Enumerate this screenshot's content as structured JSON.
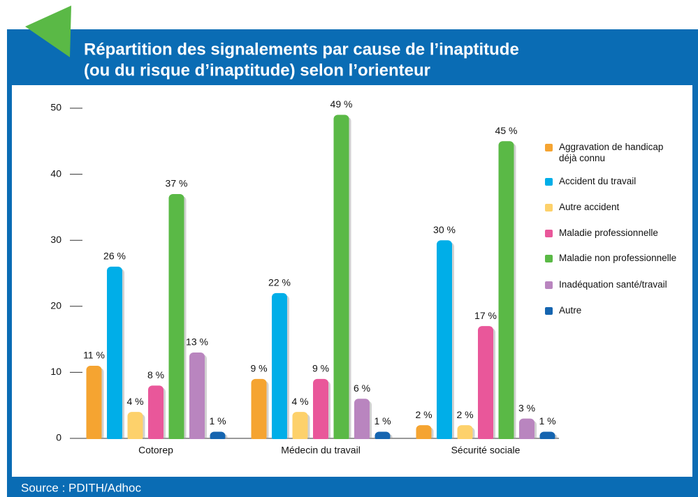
{
  "chart_data": {
    "type": "bar",
    "title_lines": [
      "Répartition des signalements par cause de l’inaptitude",
      "(ou du risque d’inaptitude) selon l’orienteur"
    ],
    "categories": [
      "Cotorep",
      "Médecin du travail",
      "Sécurité sociale"
    ],
    "series": [
      {
        "name": "Aggravation de handicap déjà connu",
        "color": "#f5a431",
        "values": [
          11,
          9,
          2
        ],
        "value_labels": [
          "11 %",
          "9 %",
          "2 %"
        ]
      },
      {
        "name": "Accident du travail",
        "color": "#00aee8",
        "values": [
          26,
          22,
          30
        ],
        "value_labels": [
          "26 %",
          "22 %",
          "30 %"
        ]
      },
      {
        "name": "Autre accident",
        "color": "#fdd16b",
        "values": [
          4,
          4,
          2
        ],
        "value_labels": [
          "4 %",
          "4 %",
          "2 %"
        ]
      },
      {
        "name": "Maladie professionnelle",
        "color": "#e9579a",
        "values": [
          8,
          9,
          17
        ],
        "value_labels": [
          "8 %",
          "9 %",
          "17 %"
        ]
      },
      {
        "name": "Maladie non professionnelle",
        "color": "#5ab946",
        "values": [
          37,
          49,
          45
        ],
        "value_labels": [
          "37 %",
          "49 %",
          "45 %"
        ]
      },
      {
        "name": "Inadéquation santé/travail",
        "color": "#b985bf",
        "values": [
          13,
          6,
          3
        ],
        "value_labels": [
          "13 %",
          "6 %",
          "3 %"
        ]
      },
      {
        "name": "Autre",
        "color": "#1565b0",
        "values": [
          1,
          1,
          1
        ],
        "value_labels": [
          "1 %",
          "1 %",
          "1 %"
        ]
      }
    ],
    "ylim": [
      0,
      50
    ],
    "yticks": [
      0,
      10,
      20,
      30,
      40,
      50
    ],
    "source": "Source : PDITH/Adhoc"
  }
}
